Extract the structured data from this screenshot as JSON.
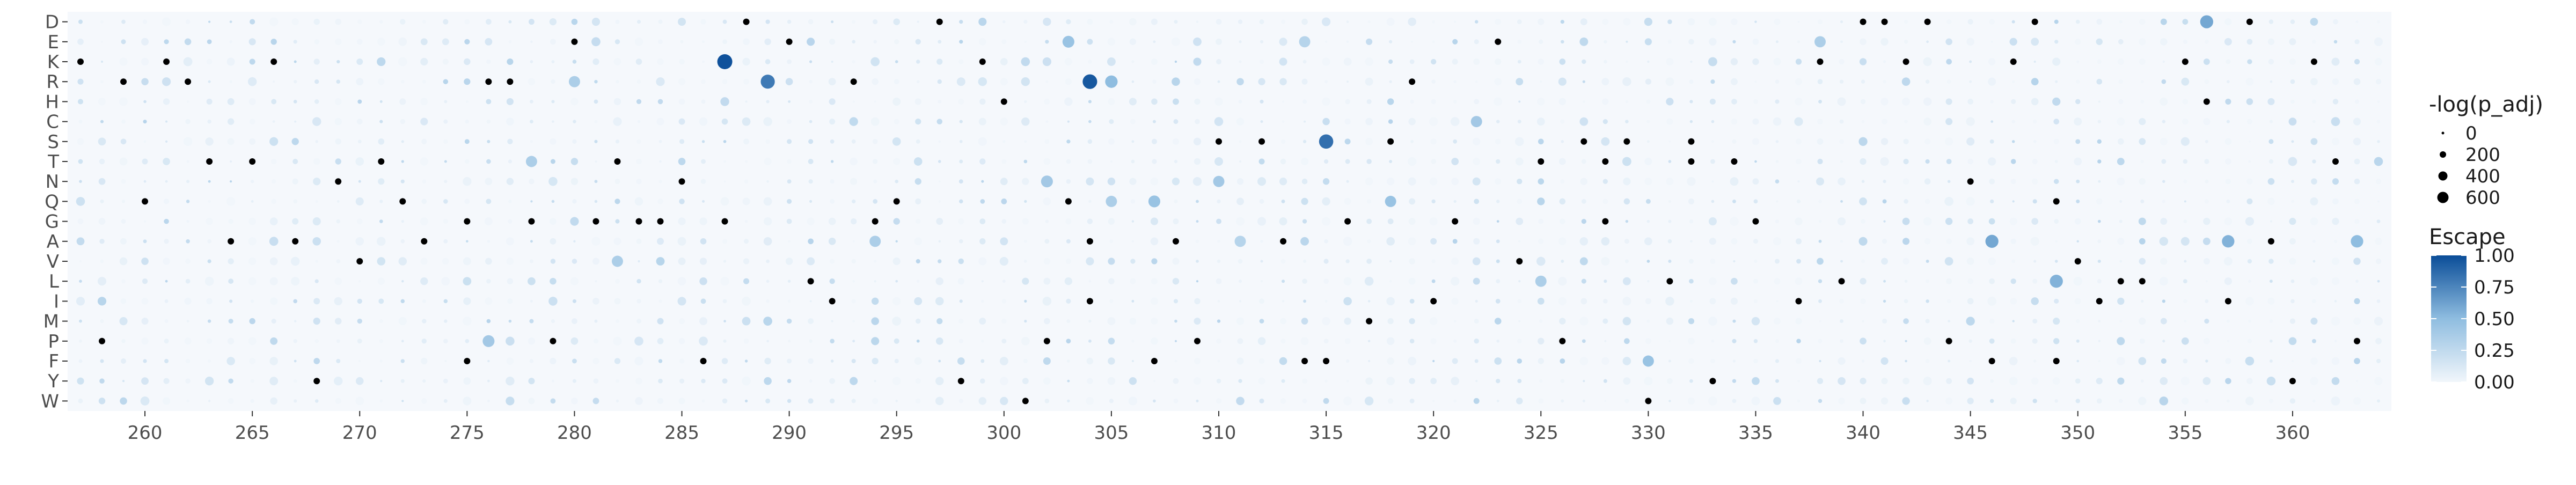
{
  "chart_data": {
    "type": "scatter",
    "subtype": "dot-heatmap",
    "title": "",
    "xlabel": "",
    "ylabel": "",
    "x_range": [
      257,
      364
    ],
    "x_ticks": [
      260,
      265,
      270,
      275,
      280,
      285,
      290,
      295,
      300,
      305,
      310,
      315,
      320,
      325,
      330,
      335,
      340,
      345,
      350,
      355,
      360
    ],
    "y_categories": [
      "D",
      "E",
      "K",
      "R",
      "H",
      "C",
      "S",
      "T",
      "N",
      "Q",
      "G",
      "A",
      "V",
      "L",
      "I",
      "M",
      "P",
      "F",
      "Y",
      "W"
    ],
    "grid": false,
    "panel_background": "#f5f8fc",
    "color_scale": {
      "title": "Escape",
      "range": [
        0,
        1
      ],
      "low_color": "#f1f6fb",
      "mid_color": "#8fbde0",
      "high_color": "#0a4d98",
      "ticks": [
        "0.00",
        "0.25",
        "0.50",
        "0.75",
        "1.00"
      ]
    },
    "size_scale": {
      "title": "-log(p_adj)",
      "ticks": [
        "0",
        "200",
        "400",
        "600"
      ]
    },
    "legend_position": "right",
    "na_color": "#000000",
    "highlight_points": [
      {
        "x": 287,
        "y": "K",
        "escape": 0.98,
        "size": 700
      },
      {
        "x": 304,
        "y": "R",
        "escape": 0.95,
        "size": 650
      },
      {
        "x": 315,
        "y": "S",
        "escape": 0.85,
        "size": 620
      },
      {
        "x": 289,
        "y": "R",
        "escape": 0.8,
        "size": 600
      },
      {
        "x": 356,
        "y": "D",
        "escape": 0.6,
        "size": 500
      },
      {
        "x": 346,
        "y": "A",
        "escape": 0.6,
        "size": 500
      },
      {
        "x": 349,
        "y": "L",
        "escape": 0.55,
        "size": 500
      },
      {
        "x": 357,
        "y": "A",
        "escape": 0.55,
        "size": 450
      },
      {
        "x": 363,
        "y": "A",
        "escape": 0.5,
        "size": 450
      },
      {
        "x": 305,
        "y": "R",
        "escape": 0.5,
        "size": 450
      },
      {
        "x": 303,
        "y": "E",
        "escape": 0.45,
        "size": 400
      },
      {
        "x": 307,
        "y": "Q",
        "escape": 0.45,
        "size": 400
      },
      {
        "x": 318,
        "y": "Q",
        "escape": 0.45,
        "size": 350
      },
      {
        "x": 330,
        "y": "F",
        "escape": 0.45,
        "size": 350
      },
      {
        "x": 302,
        "y": "N",
        "escape": 0.4,
        "size": 400
      },
      {
        "x": 310,
        "y": "N",
        "escape": 0.4,
        "size": 350
      },
      {
        "x": 322,
        "y": "C",
        "escape": 0.4,
        "size": 350
      },
      {
        "x": 276,
        "y": "P",
        "escape": 0.4,
        "size": 400
      },
      {
        "x": 278,
        "y": "T",
        "escape": 0.35,
        "size": 350
      },
      {
        "x": 305,
        "y": "Q",
        "escape": 0.35,
        "size": 350
      },
      {
        "x": 282,
        "y": "V",
        "escape": 0.35,
        "size": 350
      },
      {
        "x": 294,
        "y": "A",
        "escape": 0.35,
        "size": 350
      },
      {
        "x": 325,
        "y": "L",
        "escape": 0.35,
        "size": 350
      },
      {
        "x": 338,
        "y": "E",
        "escape": 0.35,
        "size": 350
      },
      {
        "x": 280,
        "y": "R",
        "escape": 0.35,
        "size": 350
      },
      {
        "x": 314,
        "y": "E",
        "escape": 0.3,
        "size": 350
      },
      {
        "x": 311,
        "y": "A",
        "escape": 0.3,
        "size": 350
      }
    ],
    "na_points": [
      {
        "x": 288,
        "y": "D"
      },
      {
        "x": 297,
        "y": "D"
      },
      {
        "x": 340,
        "y": "D"
      },
      {
        "x": 341,
        "y": "D"
      },
      {
        "x": 343,
        "y": "D"
      },
      {
        "x": 348,
        "y": "D"
      },
      {
        "x": 358,
        "y": "D"
      },
      {
        "x": 280,
        "y": "E"
      },
      {
        "x": 290,
        "y": "E"
      },
      {
        "x": 323,
        "y": "E"
      },
      {
        "x": 257,
        "y": "K"
      },
      {
        "x": 261,
        "y": "K"
      },
      {
        "x": 266,
        "y": "K"
      },
      {
        "x": 299,
        "y": "K"
      },
      {
        "x": 338,
        "y": "K"
      },
      {
        "x": 342,
        "y": "K"
      },
      {
        "x": 347,
        "y": "K"
      },
      {
        "x": 355,
        "y": "K"
      },
      {
        "x": 361,
        "y": "K"
      },
      {
        "x": 259,
        "y": "R"
      },
      {
        "x": 262,
        "y": "R"
      },
      {
        "x": 276,
        "y": "R"
      },
      {
        "x": 277,
        "y": "R"
      },
      {
        "x": 293,
        "y": "R"
      },
      {
        "x": 319,
        "y": "R"
      },
      {
        "x": 300,
        "y": "H"
      },
      {
        "x": 356,
        "y": "H"
      },
      {
        "x": 310,
        "y": "S"
      },
      {
        "x": 312,
        "y": "S"
      },
      {
        "x": 318,
        "y": "S"
      },
      {
        "x": 327,
        "y": "S"
      },
      {
        "x": 329,
        "y": "S"
      },
      {
        "x": 332,
        "y": "S"
      },
      {
        "x": 263,
        "y": "T"
      },
      {
        "x": 265,
        "y": "T"
      },
      {
        "x": 271,
        "y": "T"
      },
      {
        "x": 282,
        "y": "T"
      },
      {
        "x": 325,
        "y": "T"
      },
      {
        "x": 328,
        "y": "T"
      },
      {
        "x": 332,
        "y": "T"
      },
      {
        "x": 334,
        "y": "T"
      },
      {
        "x": 362,
        "y": "T"
      },
      {
        "x": 269,
        "y": "N"
      },
      {
        "x": 285,
        "y": "N"
      },
      {
        "x": 345,
        "y": "N"
      },
      {
        "x": 260,
        "y": "Q"
      },
      {
        "x": 272,
        "y": "Q"
      },
      {
        "x": 295,
        "y": "Q"
      },
      {
        "x": 303,
        "y": "Q"
      },
      {
        "x": 349,
        "y": "Q"
      },
      {
        "x": 275,
        "y": "G"
      },
      {
        "x": 278,
        "y": "G"
      },
      {
        "x": 281,
        "y": "G"
      },
      {
        "x": 283,
        "y": "G"
      },
      {
        "x": 284,
        "y": "G"
      },
      {
        "x": 287,
        "y": "G"
      },
      {
        "x": 294,
        "y": "G"
      },
      {
        "x": 316,
        "y": "G"
      },
      {
        "x": 321,
        "y": "G"
      },
      {
        "x": 328,
        "y": "G"
      },
      {
        "x": 335,
        "y": "G"
      },
      {
        "x": 264,
        "y": "A"
      },
      {
        "x": 267,
        "y": "A"
      },
      {
        "x": 273,
        "y": "A"
      },
      {
        "x": 304,
        "y": "A"
      },
      {
        "x": 308,
        "y": "A"
      },
      {
        "x": 313,
        "y": "A"
      },
      {
        "x": 359,
        "y": "A"
      },
      {
        "x": 270,
        "y": "V"
      },
      {
        "x": 324,
        "y": "V"
      },
      {
        "x": 350,
        "y": "V"
      },
      {
        "x": 291,
        "y": "L"
      },
      {
        "x": 331,
        "y": "L"
      },
      {
        "x": 339,
        "y": "L"
      },
      {
        "x": 352,
        "y": "L"
      },
      {
        "x": 353,
        "y": "L"
      },
      {
        "x": 292,
        "y": "I"
      },
      {
        "x": 304,
        "y": "I"
      },
      {
        "x": 320,
        "y": "I"
      },
      {
        "x": 337,
        "y": "I"
      },
      {
        "x": 351,
        "y": "I"
      },
      {
        "x": 357,
        "y": "I"
      },
      {
        "x": 317,
        "y": "M"
      },
      {
        "x": 258,
        "y": "P"
      },
      {
        "x": 279,
        "y": "P"
      },
      {
        "x": 302,
        "y": "P"
      },
      {
        "x": 309,
        "y": "P"
      },
      {
        "x": 326,
        "y": "P"
      },
      {
        "x": 344,
        "y": "P"
      },
      {
        "x": 363,
        "y": "P"
      },
      {
        "x": 275,
        "y": "F"
      },
      {
        "x": 286,
        "y": "F"
      },
      {
        "x": 307,
        "y": "F"
      },
      {
        "x": 314,
        "y": "F"
      },
      {
        "x": 315,
        "y": "F"
      },
      {
        "x": 346,
        "y": "F"
      },
      {
        "x": 349,
        "y": "F"
      },
      {
        "x": 268,
        "y": "Y"
      },
      {
        "x": 298,
        "y": "Y"
      },
      {
        "x": 333,
        "y": "Y"
      },
      {
        "x": 360,
        "y": "Y"
      },
      {
        "x": 301,
        "y": "W"
      },
      {
        "x": 330,
        "y": "W"
      }
    ]
  }
}
